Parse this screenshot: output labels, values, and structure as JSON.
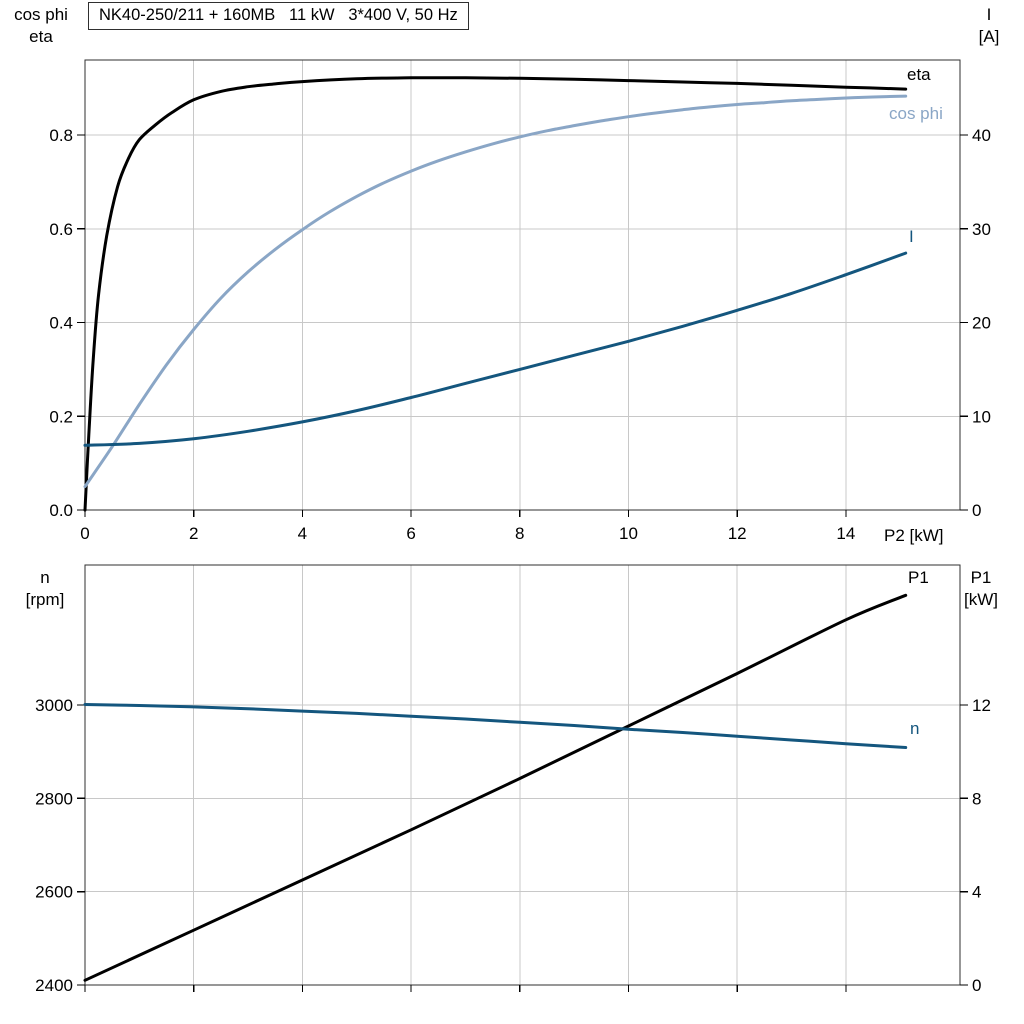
{
  "title_box": "NK40-250/211 + 160MB   11 kW   3*400 V, 50 Hz",
  "axis_labels": {
    "top_left_line1": "cos phi",
    "top_left_line2": "eta",
    "top_right_line1": "I",
    "top_right_line2": "[A]",
    "bottom_left_line1": "n",
    "bottom_left_line2": "[rpm]",
    "bottom_right_line1": "P1",
    "bottom_right_line2": "[kW]",
    "x_axis": "P2 [kW]"
  },
  "curve_labels": {
    "eta": "eta",
    "cos_phi": "cos phi",
    "current": "I",
    "p1": "P1",
    "n": "n"
  },
  "colors": {
    "black": "#000000",
    "light_blue": "#8aa6c6",
    "dark_blue": "#14567e",
    "grid": "#c8c8c8",
    "frame": "#2f2f2f",
    "text": "#000000"
  },
  "chart_data": [
    {
      "type": "line",
      "panel": "top",
      "title": "NK40-250/211 + 160MB   11 kW   3*400 V, 50 Hz",
      "xlabel": "P2 [kW]",
      "xlim": [
        0,
        16.1
      ],
      "x_ticks": {
        "values": [
          0,
          2,
          4,
          6,
          8,
          10,
          12,
          14
        ],
        "labels": [
          "0",
          "2",
          "4",
          "6",
          "8",
          "10",
          "12",
          "14"
        ]
      },
      "left_axis": {
        "label": "cos phi / eta",
        "lim": [
          0,
          0.96
        ],
        "tick_values": [
          0,
          0.2,
          0.4,
          0.6,
          0.8
        ],
        "tick_labels": [
          "0.0",
          "0.2",
          "0.4",
          "0.6",
          "0.8"
        ]
      },
      "right_axis": {
        "label": "I [A]",
        "lim": [
          0,
          48
        ],
        "tick_values": [
          0,
          10,
          20,
          30,
          40
        ],
        "tick_labels": [
          "0",
          "10",
          "20",
          "30",
          "40"
        ]
      },
      "grid": true,
      "legend_position": "labels-at-line-ends",
      "series": [
        {
          "name": "eta",
          "axis": "left",
          "color": "black",
          "x": [
            0,
            0.07,
            0.15,
            0.25,
            0.4,
            0.6,
            0.8,
            1,
            1.3,
            1.6,
            2,
            2.5,
            3,
            3.5,
            4,
            5,
            6,
            7,
            8,
            9,
            10,
            11,
            12,
            13,
            14,
            15.1
          ],
          "y": [
            0,
            0.16,
            0.32,
            0.46,
            0.585,
            0.69,
            0.75,
            0.79,
            0.822,
            0.848,
            0.875,
            0.893,
            0.903,
            0.909,
            0.914,
            0.92,
            0.922,
            0.922,
            0.921,
            0.919,
            0.916,
            0.913,
            0.91,
            0.906,
            0.902,
            0.898
          ]
        },
        {
          "name": "cos phi",
          "axis": "left",
          "color": "light_blue",
          "x": [
            0,
            0.5,
            1,
            1.5,
            2,
            2.5,
            3,
            3.5,
            4,
            4.5,
            5,
            5.5,
            6,
            6.5,
            7,
            7.5,
            8,
            8.5,
            9,
            9.5,
            10,
            10.5,
            11,
            11.5,
            12,
            12.5,
            13,
            13.5,
            14,
            14.5,
            15.1
          ],
          "y": [
            0.05,
            0.135,
            0.225,
            0.31,
            0.385,
            0.452,
            0.508,
            0.556,
            0.598,
            0.636,
            0.669,
            0.698,
            0.723,
            0.745,
            0.764,
            0.781,
            0.796,
            0.809,
            0.82,
            0.83,
            0.839,
            0.847,
            0.854,
            0.86,
            0.865,
            0.869,
            0.873,
            0.876,
            0.879,
            0.881,
            0.883
          ]
        },
        {
          "name": "I",
          "axis": "right",
          "color": "dark_blue",
          "x": [
            0,
            1,
            2,
            3,
            4,
            5,
            6,
            7,
            8,
            9,
            10,
            11,
            12,
            13,
            14,
            15.1
          ],
          "y": [
            6.9,
            7.1,
            7.6,
            8.4,
            9.4,
            10.6,
            12,
            13.5,
            15,
            16.5,
            18,
            19.6,
            21.3,
            23.1,
            25.1,
            27.4
          ]
        }
      ]
    },
    {
      "type": "line",
      "panel": "bottom",
      "xlabel": "",
      "xlim": [
        0,
        16.1
      ],
      "x_ticks": {
        "values": [
          0,
          2,
          4,
          6,
          8,
          10,
          12,
          14
        ],
        "labels": []
      },
      "left_axis": {
        "label": "n [rpm]",
        "lim": [
          2400,
          3300
        ],
        "tick_values": [
          2400,
          2600,
          2800,
          3000
        ],
        "tick_labels": [
          "2400",
          "2600",
          "2800",
          "3000"
        ]
      },
      "right_axis": {
        "label": "P1 [kW]",
        "lim": [
          0,
          18
        ],
        "tick_values": [
          0,
          4,
          8,
          12
        ],
        "tick_labels": [
          "0",
          "4",
          "8",
          "12"
        ]
      },
      "grid": true,
      "legend_position": "labels-at-line-ends",
      "series": [
        {
          "name": "P1",
          "axis": "right",
          "color": "black",
          "x": [
            0,
            2,
            4,
            6,
            8,
            10,
            12,
            14,
            15.1
          ],
          "y": [
            0.2,
            2.35,
            4.5,
            6.65,
            8.85,
            11.1,
            13.35,
            15.65,
            16.7
          ]
        },
        {
          "name": "n",
          "axis": "left",
          "color": "dark_blue",
          "x": [
            0,
            1,
            2,
            3,
            4,
            5,
            6,
            7,
            8,
            9,
            10,
            11,
            12,
            13,
            14,
            15.1
          ],
          "y": [
            3001,
            2999,
            2996,
            2992,
            2987,
            2982,
            2976,
            2970,
            2963,
            2956,
            2948,
            2941,
            2933,
            2925,
            2917,
            2909
          ]
        }
      ]
    }
  ]
}
